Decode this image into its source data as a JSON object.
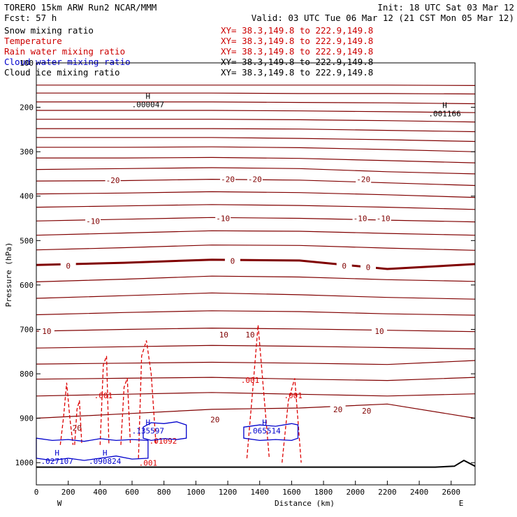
{
  "header": {
    "model": "TORERO  15km ARW   Run2    NCAR/MMM",
    "init": "Init: 18 UTC Sat 03 Mar 12",
    "fcst": "Fcst:   57 h",
    "valid": "Valid: 03 UTC Tue 06 Mar 12 (21 CST Mon 05 Mar 12)"
  },
  "legend": [
    {
      "name": "Snow mixing ratio",
      "xy": "XY=  38.3,149.8 to 222.9,149.8",
      "color": "#000000",
      "xy_color": "#cc0000"
    },
    {
      "name": "Temperature",
      "xy": "XY=  38.3,149.8 to 222.9,149.8",
      "color": "#cc0000",
      "xy_color": "#cc0000"
    },
    {
      "name": "Rain water mixing ratio",
      "xy": "XY=  38.3,149.8 to 222.9,149.8",
      "color": "#cc0000",
      "xy_color": "#cc0000"
    },
    {
      "name": "Cloud water mixing ratio",
      "xy": "XY=  38.3,149.8 to 222.9,149.8",
      "color": "#0000cc",
      "xy_color": "#000000"
    },
    {
      "name": "Cloud ice mixing ratio",
      "xy": "XY=  38.3,149.8 to 222.9,149.8",
      "color": "#000000",
      "xy_color": "#000000"
    }
  ],
  "chart_data": {
    "type": "line",
    "xlabel": "Distance (km)",
    "ylabel": "Pressure (hPa)",
    "xlim": [
      0,
      2750
    ],
    "ylim": [
      1050,
      100
    ],
    "xticks": [
      0,
      200,
      400,
      600,
      800,
      1000,
      1200,
      1400,
      1600,
      1800,
      2000,
      2200,
      2400,
      2600
    ],
    "yticks": [
      100,
      200,
      300,
      400,
      500,
      600,
      700,
      800,
      900,
      1000
    ],
    "end_labels": {
      "left": "W",
      "right": "E"
    },
    "colors": {
      "temperature": "#800000",
      "rain": "#dd0000",
      "cloud_water": "#0000cc",
      "snow": "#000000",
      "terrain": "#000000"
    },
    "isotherms": [
      {
        "p": [
          150,
          150,
          150,
          150,
          150,
          151
        ]
      },
      {
        "p": [
          168,
          168,
          168,
          169,
          169,
          170
        ]
      },
      {
        "p": [
          188,
          188,
          188,
          189,
          190,
          192
        ]
      },
      {
        "p": [
          207,
          207,
          207,
          208,
          210,
          212
        ]
      },
      {
        "p": [
          227,
          227,
          227,
          228,
          230,
          233
        ]
      },
      {
        "p": [
          248,
          248,
          248,
          249,
          252,
          255
        ]
      },
      {
        "p": [
          268,
          268,
          268,
          270,
          273,
          277
        ]
      },
      {
        "p": [
          290,
          290,
          289,
          291,
          295,
          300
        ]
      },
      {
        "p": [
          314,
          314,
          313,
          315,
          320,
          325
        ]
      },
      {
        "p": [
          340,
          338,
          336,
          338,
          345,
          350
        ]
      },
      {
        "p": [
          366,
          365,
          362,
          364,
          370,
          376
        ]
      },
      {
        "p": [
          395,
          393,
          390,
          392,
          397,
          403
        ]
      },
      {
        "p": [
          425,
          422,
          419,
          421,
          425,
          430
        ]
      },
      {
        "p": [
          456,
          452,
          448,
          450,
          454,
          458
        ]
      },
      {
        "p": [
          488,
          483,
          478,
          479,
          484,
          488
        ]
      },
      {
        "p": [
          521,
          516,
          510,
          511,
          517,
          522
        ]
      },
      {
        "p": [
          555,
          550,
          543,
          545,
          564,
          553
        ],
        "label": "0",
        "bold": true
      },
      {
        "p": [
          593,
          587,
          580,
          582,
          588,
          592
        ]
      },
      {
        "p": [
          630,
          624,
          618,
          622,
          628,
          632
        ]
      },
      {
        "p": [
          667,
          662,
          658,
          660,
          665,
          668
        ]
      },
      {
        "p": [
          704,
          700,
          697,
          699,
          702,
          705
        ]
      },
      {
        "p": [
          742,
          739,
          736,
          738,
          741,
          744
        ]
      },
      {
        "p": [
          778,
          776,
          774,
          776,
          779,
          770
        ]
      },
      {
        "p": [
          812,
          810,
          808,
          812,
          815,
          808
        ]
      },
      {
        "p": [
          850,
          846,
          842,
          846,
          850,
          845
        ]
      },
      {
        "p": [
          900,
          890,
          880,
          877,
          868,
          900
        ]
      }
    ],
    "isotherm_x": [
      0,
      550,
      1100,
      1650,
      2200,
      2750
    ],
    "isotherm_labels": [
      {
        "x": 480,
        "p": 364,
        "text": "-20"
      },
      {
        "x": 1200,
        "p": 362,
        "text": "-20"
      },
      {
        "x": 1370,
        "p": 362,
        "text": "-20"
      },
      {
        "x": 2050,
        "p": 362,
        "text": "-20"
      },
      {
        "x": 355,
        "p": 456,
        "text": "-10"
      },
      {
        "x": 1170,
        "p": 450,
        "text": "-10"
      },
      {
        "x": 2030,
        "p": 450,
        "text": "-10"
      },
      {
        "x": 2175,
        "p": 450,
        "text": "-10"
      },
      {
        "x": 200,
        "p": 557,
        "text": "0"
      },
      {
        "x": 1230,
        "p": 546,
        "text": "0"
      },
      {
        "x": 1930,
        "p": 557,
        "text": "0"
      },
      {
        "x": 2080,
        "p": 560,
        "text": "0"
      },
      {
        "x": 65,
        "p": 704,
        "text": "10"
      },
      {
        "x": 1175,
        "p": 712,
        "text": "10"
      },
      {
        "x": 1340,
        "p": 712,
        "text": "10"
      },
      {
        "x": 2150,
        "p": 704,
        "text": "10"
      },
      {
        "x": 255,
        "p": 922,
        "text": "20"
      },
      {
        "x": 1120,
        "p": 903,
        "text": "20"
      },
      {
        "x": 1890,
        "p": 880,
        "text": "20"
      },
      {
        "x": 2070,
        "p": 883,
        "text": "20"
      }
    ],
    "rain_contours": [
      {
        "x": [
          150,
          170,
          190,
          210,
          230
        ],
        "p": [
          960,
          900,
          820,
          900,
          960
        ]
      },
      {
        "x": [
          240,
          255,
          270,
          285
        ],
        "p": [
          960,
          880,
          860,
          960
        ]
      },
      {
        "x": [
          400,
          420,
          440,
          455
        ],
        "p": [
          960,
          780,
          760,
          960
        ]
      },
      {
        "x": [
          530,
          550,
          570,
          590
        ],
        "p": [
          960,
          830,
          810,
          960
        ]
      },
      {
        "x": [
          640,
          660,
          690,
          720,
          750
        ],
        "p": [
          990,
          760,
          725,
          800,
          960
        ]
      },
      {
        "x": [
          1320,
          1360,
          1390,
          1420,
          1460
        ],
        "p": [
          990,
          820,
          690,
          820,
          990
        ]
      },
      {
        "x": [
          1540,
          1580,
          1620,
          1660
        ],
        "p": [
          1000,
          860,
          810,
          1000
        ]
      }
    ],
    "rain_labels": [
      {
        "x": 420,
        "p": 855,
        "text": ".001"
      },
      {
        "x": 1340,
        "p": 820,
        "text": ".001"
      },
      {
        "x": 1610,
        "p": 855,
        "text": ".001"
      },
      {
        "x": 795,
        "p": 957,
        "text": ".01092"
      },
      {
        "x": 700,
        "p": 1007,
        "text": ".001"
      }
    ],
    "cloud_water_contours": [
      {
        "x": [
          0,
          100,
          200,
          300,
          400,
          500,
          600,
          700,
          700,
          600,
          500,
          400,
          300,
          200,
          100,
          0
        ],
        "p": [
          945,
          950,
          948,
          952,
          946,
          950,
          948,
          950,
          990,
          992,
          985,
          990,
          995,
          990,
          995,
          990
        ]
      },
      {
        "x": [
          670,
          720,
          800,
          880,
          940,
          940,
          880,
          800,
          720,
          670
        ],
        "p": [
          920,
          910,
          912,
          908,
          915,
          945,
          948,
          946,
          950,
          945
        ]
      },
      {
        "x": [
          1300,
          1400,
          1500,
          1600,
          1640,
          1640,
          1600,
          1500,
          1400,
          1300
        ],
        "p": [
          920,
          915,
          918,
          912,
          915,
          945,
          950,
          948,
          950,
          945
        ]
      }
    ],
    "extrema": [
      {
        "x": 700,
        "p": 187,
        "mark": "H",
        "text": ".000047",
        "color": "#000000"
      },
      {
        "x": 2560,
        "p": 208,
        "mark": "H",
        "text": ".001166",
        "color": "#000000"
      },
      {
        "x": 700,
        "p": 922,
        "mark": "H",
        "text": ".135597",
        "color": "#0000cc"
      },
      {
        "x": 130,
        "p": 990,
        "mark": "H",
        "text": ".027107",
        "color": "#0000cc"
      },
      {
        "x": 430,
        "p": 990,
        "mark": "H",
        "text": ".090824",
        "color": "#0000cc"
      },
      {
        "x": 1430,
        "p": 922,
        "mark": "H",
        "text": ".065514",
        "color": "#0000cc"
      }
    ],
    "terrain": {
      "x": [
        0,
        2500,
        2620,
        2680,
        2750
      ],
      "p": [
        1010,
        1010,
        1008,
        995,
        1008
      ]
    }
  }
}
